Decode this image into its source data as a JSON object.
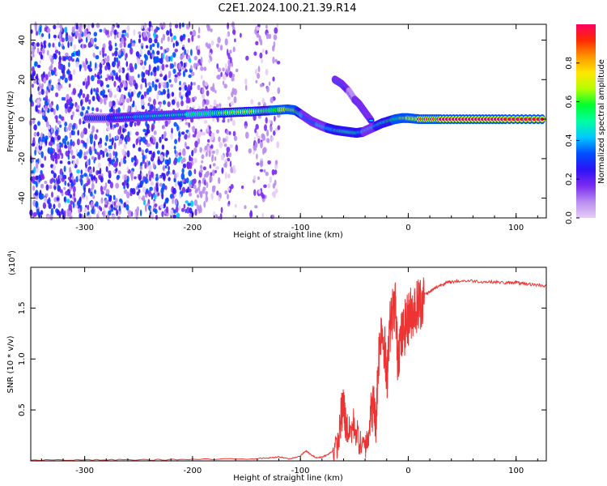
{
  "title": "C2E1.2024.100.21.39.R14",
  "chart_data": [
    {
      "type": "heatmap",
      "title": "C2E1.2024.100.21.39.R14",
      "xlabel": "Height of straight line (km)",
      "ylabel": "Frequency (Hz)",
      "xlim": [
        -350,
        128
      ],
      "ylim": [
        -50,
        48
      ],
      "xticks": [
        -300,
        -200,
        -100,
        0,
        100
      ],
      "xtick_labels": [
        "-300",
        "-200",
        "-100",
        "0",
        "100"
      ],
      "yticks": [
        -40,
        -20,
        0,
        20,
        40
      ],
      "ytick_labels": [
        "-40",
        "-20",
        "0",
        "20",
        "40"
      ],
      "colorbar": {
        "label": "Normalized spectral amplitude",
        "range": [
          0,
          1
        ],
        "ticks": [
          0.0,
          0.2,
          0.4,
          0.6,
          0.8
        ],
        "tick_labels": [
          "0.0",
          "0.2",
          "0.4",
          "0.6",
          "0.8"
        ],
        "colors": [
          "#e6cdf7",
          "#b98cf0",
          "#7a2bf0",
          "#2c12f5",
          "#0050ff",
          "#00c8ff",
          "#00ffa0",
          "#00ff30",
          "#b4ff00",
          "#ffe600",
          "#ff9600",
          "#ff2a00",
          "#ff0060"
        ]
      },
      "ridge": {
        "x": [
          -298,
          -280,
          -260,
          -240,
          -220,
          -200,
          -180,
          -160,
          -140,
          -125,
          -112,
          -105,
          -98,
          -90,
          -82,
          -75,
          -68,
          -62,
          -55,
          -48,
          -42,
          -36,
          -30,
          -24,
          -18,
          -12,
          -6,
          0,
          10,
          30,
          60,
          90,
          128
        ],
        "y": [
          0.5,
          0.5,
          1.0,
          1.5,
          2.0,
          2.5,
          3.0,
          3.5,
          4.0,
          4.5,
          5.0,
          4.5,
          2.0,
          -1.0,
          -3.0,
          -4.5,
          -5.5,
          -6.0,
          -6.5,
          -7.0,
          -6.5,
          -5.0,
          -3.5,
          -2.0,
          -1.0,
          0.0,
          0.5,
          0.5,
          0.0,
          0.0,
          0.0,
          0.0,
          0.0
        ],
        "amplitude": [
          0.3,
          0.35,
          0.4,
          0.45,
          0.5,
          0.55,
          0.6,
          0.7,
          0.75,
          0.85,
          0.95,
          0.95,
          0.55,
          0.5,
          0.55,
          0.6,
          0.65,
          0.7,
          0.75,
          0.7,
          0.6,
          0.55,
          0.6,
          0.7,
          0.8,
          0.85,
          0.9,
          0.95,
          0.97,
          0.97,
          0.97,
          0.97,
          0.97
        ]
      },
      "branch": {
        "x": [
          -68,
          -62,
          -55,
          -50,
          -46,
          -42,
          -38,
          -34
        ],
        "y": [
          20,
          18,
          14,
          10,
          8,
          5,
          2,
          -1
        ],
        "amplitude": [
          0.5,
          0.5,
          0.35,
          0.35,
          0.45,
          0.5,
          0.45,
          0.4
        ]
      },
      "noise_region": [
        -350,
        -120
      ]
    },
    {
      "type": "line",
      "xlabel": "Height of straight line (km)",
      "ylabel": "SNR (10 * v/v)",
      "multiplier_label": "(x10",
      "multiplier_exp": "4",
      "xlim": [
        -350,
        128
      ],
      "ylim": [
        0,
        1.9
      ],
      "xticks": [
        -300,
        -200,
        -100,
        0,
        100
      ],
      "xtick_labels": [
        "-300",
        "-200",
        "-100",
        "0",
        "100"
      ],
      "yticks": [
        0.5,
        1.0,
        1.5
      ],
      "ytick_labels": [
        "0.5",
        "1.0",
        "1.5"
      ],
      "color": "#ee3333",
      "x": [
        -350,
        -300,
        -250,
        -200,
        -150,
        -130,
        -120,
        -110,
        -100,
        -95,
        -90,
        -85,
        -80,
        -75,
        -70,
        -65,
        -62,
        -60,
        -58,
        -55,
        -50,
        -45,
        -40,
        -38,
        -35,
        -32,
        -30,
        -28,
        -25,
        -22,
        -20,
        -18,
        -15,
        -12,
        -10,
        -8,
        -5,
        -2,
        0,
        2,
        5,
        8,
        10,
        12,
        15,
        20,
        25,
        30,
        35,
        40,
        50,
        60,
        70,
        80,
        90,
        95,
        100,
        105,
        110,
        120,
        128
      ],
      "y": [
        0.01,
        0.01,
        0.012,
        0.015,
        0.02,
        0.03,
        0.04,
        0.02,
        0.05,
        0.1,
        0.06,
        0.03,
        0.04,
        0.06,
        0.1,
        0.2,
        0.5,
        0.6,
        0.4,
        0.3,
        0.4,
        0.2,
        0.15,
        0.25,
        0.5,
        0.6,
        0.4,
        1.0,
        1.4,
        1.2,
        0.8,
        1.3,
        1.5,
        1.6,
        1.1,
        1.2,
        1.3,
        1.4,
        1.45,
        1.5,
        1.55,
        1.58,
        1.6,
        1.62,
        1.64,
        1.66,
        1.7,
        1.73,
        1.75,
        1.76,
        1.77,
        1.77,
        1.76,
        1.76,
        1.75,
        1.75,
        1.76,
        1.74,
        1.74,
        1.73,
        1.72
      ]
    }
  ]
}
